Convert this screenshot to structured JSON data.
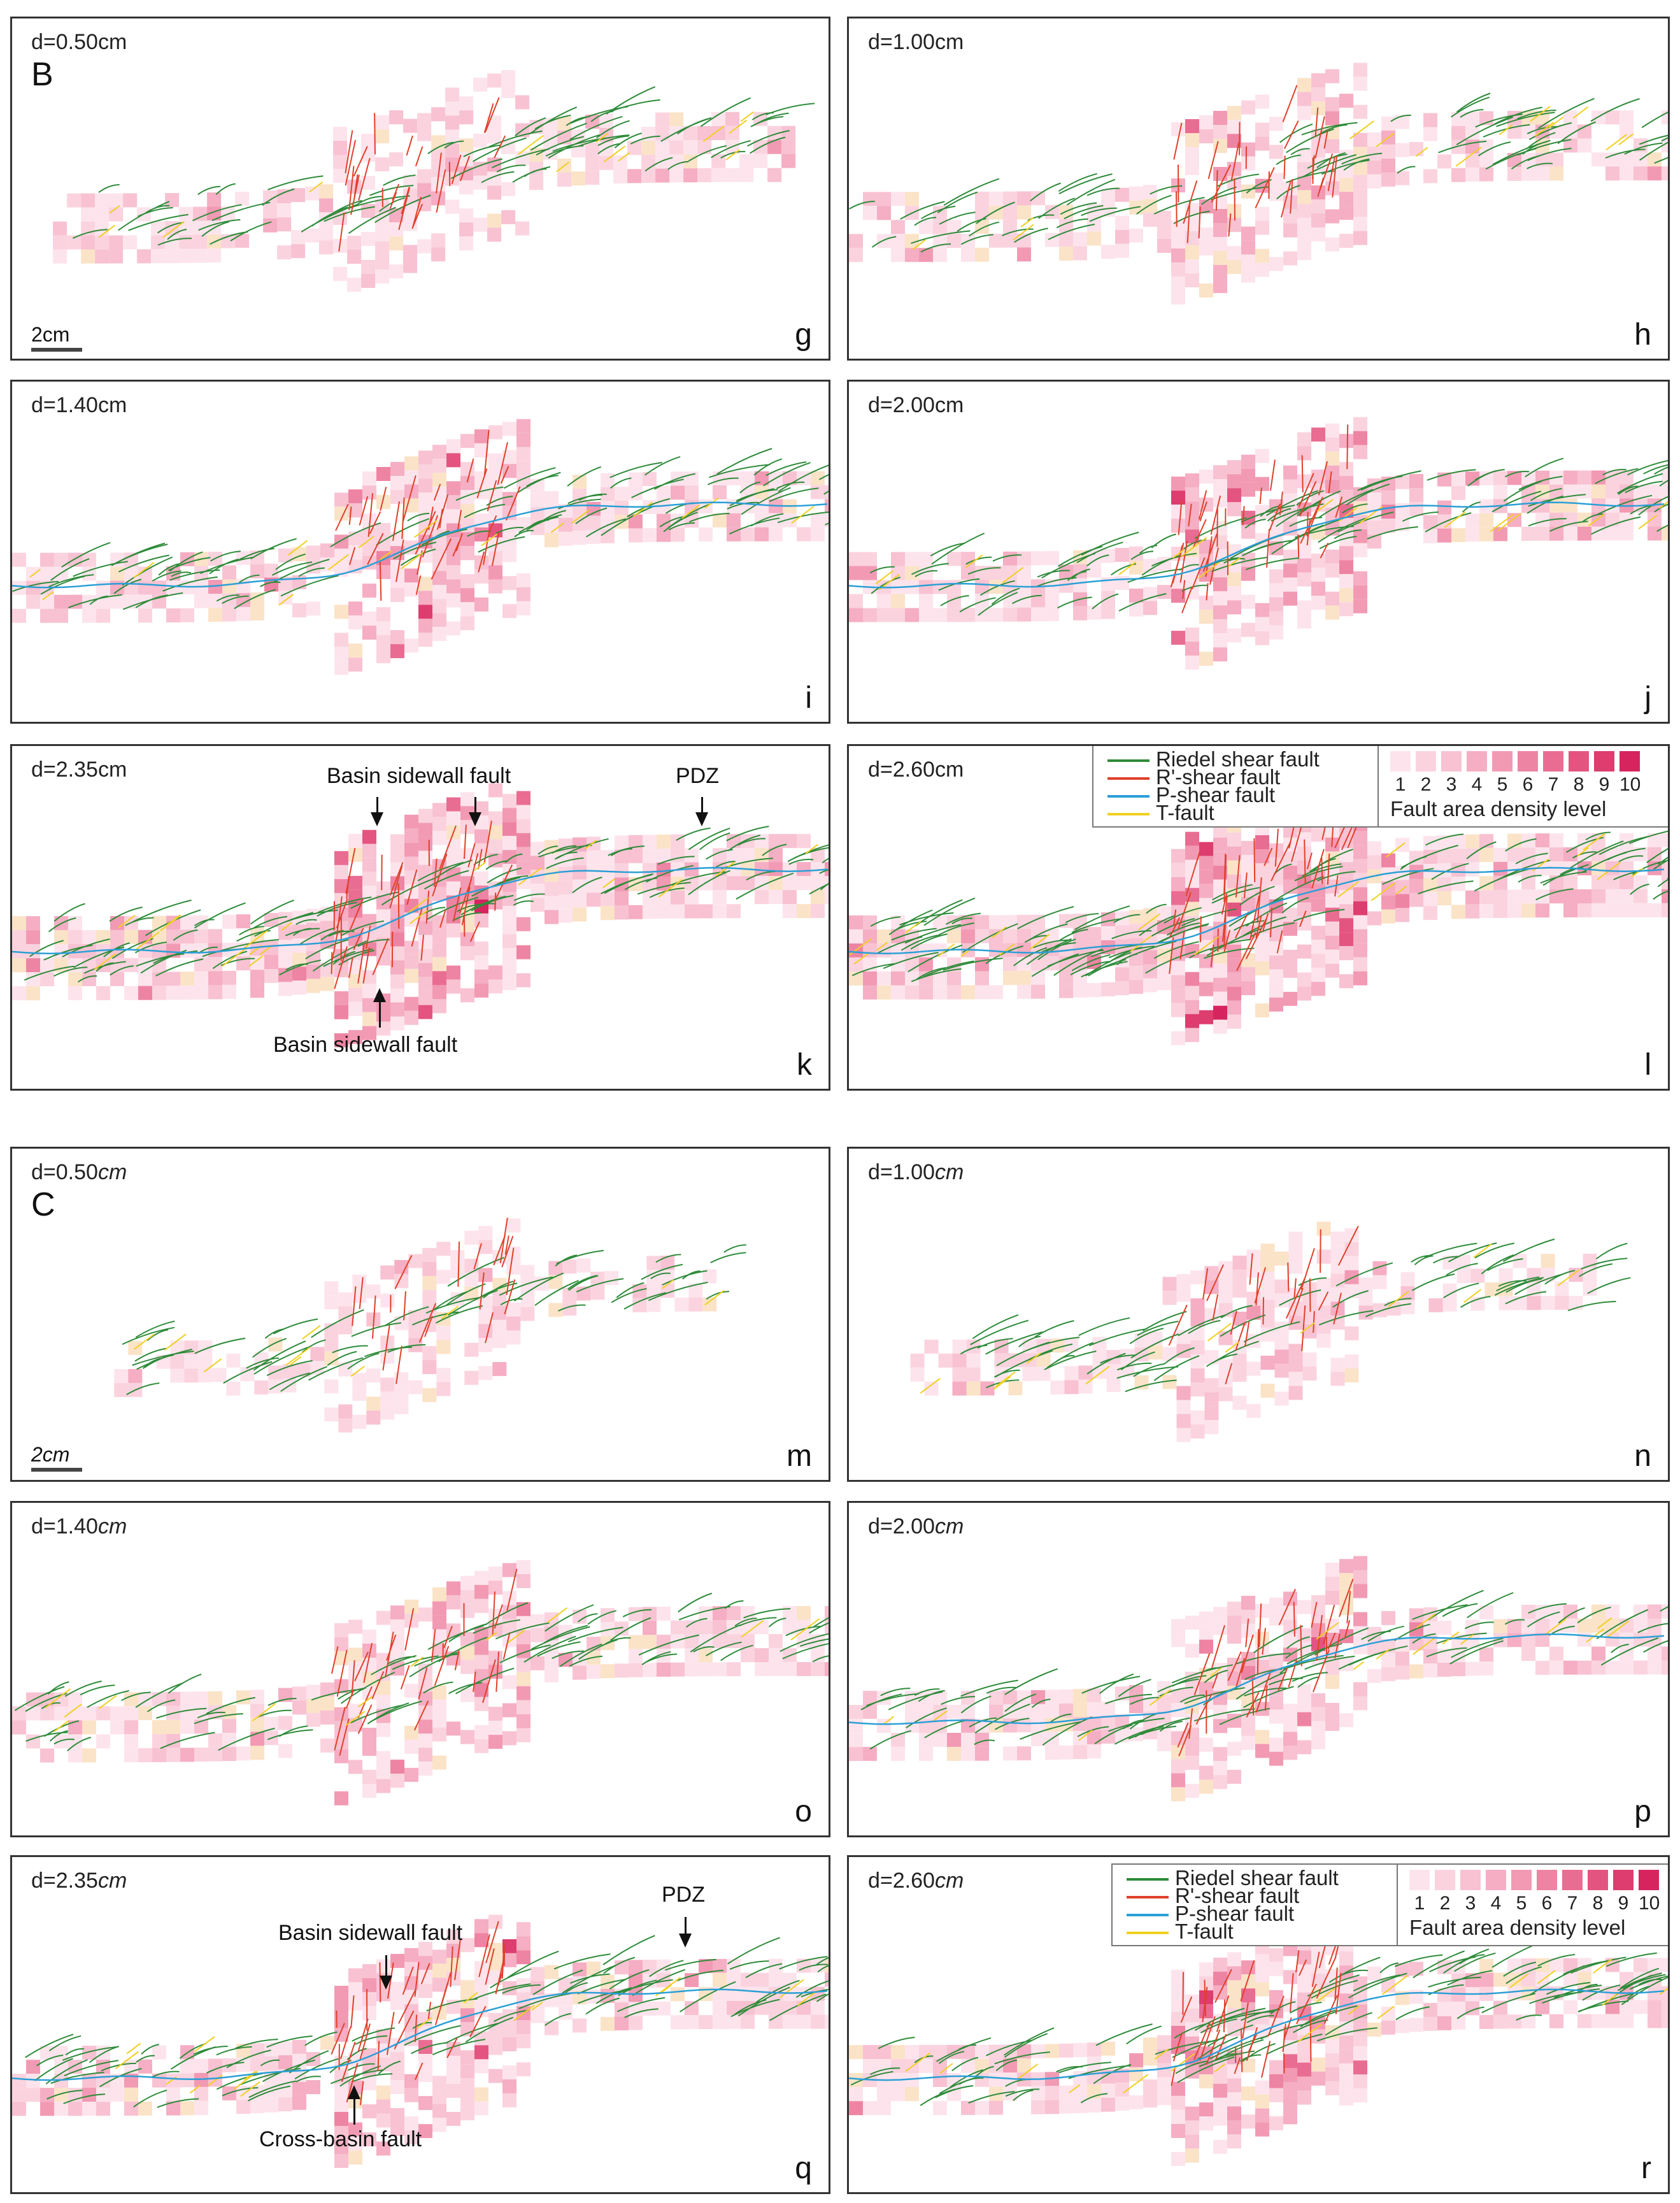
{
  "groups": [
    "B",
    "C"
  ],
  "scale_label": "2cm",
  "panels": [
    {
      "id": "g",
      "d": "d=0.50",
      "unit": "cm",
      "italic": false,
      "group": "B",
      "scale": true,
      "width": 0.9,
      "dens": 0.5
    },
    {
      "id": "h",
      "d": "d=1.00",
      "unit": "cm",
      "italic": false,
      "width": 1.0,
      "dens": 0.6
    },
    {
      "id": "i",
      "d": "d=1.40",
      "unit": "cm",
      "italic": false,
      "width": 1.0,
      "dens": 0.75
    },
    {
      "id": "j",
      "d": "d=2.00",
      "unit": "cm",
      "italic": false,
      "width": 1.0,
      "dens": 0.8
    },
    {
      "id": "k",
      "d": "d=2.35",
      "unit": "cm",
      "italic": false,
      "width": 1.0,
      "dens": 0.9
    },
    {
      "id": "l",
      "d": "d=2.60",
      "unit": "cm",
      "italic": false,
      "width": 1.0,
      "dens": 0.95,
      "legend": true
    },
    {
      "id": "m",
      "d": "d=0.50",
      "unit": "cm",
      "italic": true,
      "group": "C",
      "scale": true,
      "width": 0.75,
      "dens": 0.35
    },
    {
      "id": "n",
      "d": "d=1.00",
      "unit": "cm",
      "italic": true,
      "width": 0.85,
      "dens": 0.45
    },
    {
      "id": "o",
      "d": "d=1.40",
      "unit": "cm",
      "italic": true,
      "width": 1.0,
      "dens": 0.6
    },
    {
      "id": "p",
      "d": "d=2.00",
      "unit": "cm",
      "italic": true,
      "width": 1.0,
      "dens": 0.7
    },
    {
      "id": "q",
      "d": "d=2.35",
      "unit": "cm",
      "italic": true,
      "width": 1.0,
      "dens": 0.75
    },
    {
      "id": "r",
      "d": "d=2.60",
      "unit": "cm",
      "italic": true,
      "width": 1.0,
      "dens": 0.8,
      "legend": true
    }
  ],
  "annotations": {
    "k_basin_top": "Basin sidewall fault",
    "k_basin_bottom": "Basin sidewall fault",
    "k_pdz": "PDZ",
    "q_basin": "Basin sidewall fault",
    "q_pdz": "PDZ",
    "q_cross": "Cross-basin fault"
  },
  "legend": {
    "faults": [
      {
        "label": "Riedel shear fault",
        "color": "#2e8b3a"
      },
      {
        "label": "R'-shear fault",
        "color": "#e0402a"
      },
      {
        "label": "P-shear fault",
        "color": "#2a9fd6"
      },
      {
        "label": "T-fault",
        "color": "#f0d020"
      }
    ],
    "levels": [
      "1",
      "2",
      "3",
      "4",
      "5",
      "6",
      "7",
      "8",
      "9",
      "10"
    ],
    "level_colors": [
      "#fde4ec",
      "#fbd3df",
      "#f8c2d2",
      "#f5aec3",
      "#f29ab4",
      "#ee84a3",
      "#e96d92",
      "#e35580",
      "#dd3d6f",
      "#d6255e"
    ],
    "density_label": "Fault area density level"
  }
}
